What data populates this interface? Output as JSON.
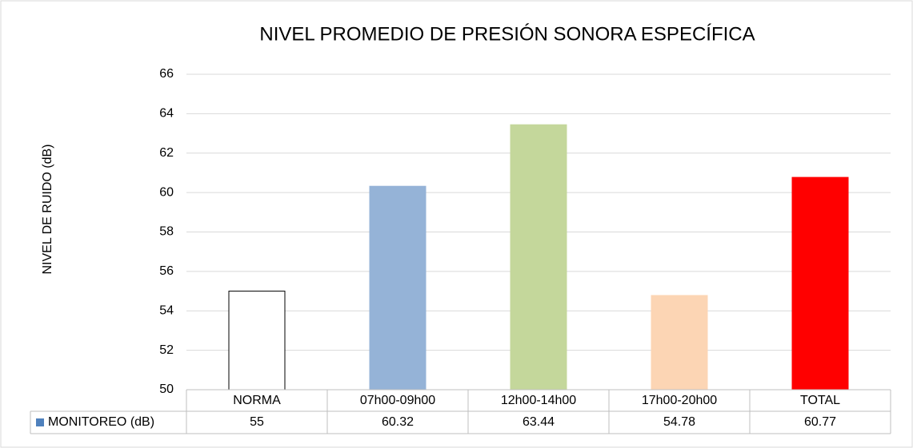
{
  "chart_data": {
    "type": "bar",
    "title": "NIVEL PROMEDIO DE PRESIÓN SONORA ESPECÍFICA",
    "ylabel": "NIVEL DE RUIDO (dB)",
    "categories": [
      "NORMA",
      "07h00-09h00",
      "12h00-14h00",
      "17h00-20h00",
      "TOTAL"
    ],
    "series": [
      {
        "name": "MONITOREO (dB)",
        "color": "#4f81bd",
        "values": [
          55,
          60.32,
          63.44,
          54.78,
          60.77
        ],
        "bar_colors": [
          "#ffffff",
          "#95b3d7",
          "#c4d79b",
          "#fcd5b4",
          "#ff0000"
        ],
        "bar_edgecolors": [
          "#000000",
          "#95b3d7",
          "#c4d79b",
          "#fcd5b4",
          "#ff0000"
        ]
      }
    ],
    "ylim": [
      50,
      66
    ],
    "yticks": [
      50,
      52,
      54,
      56,
      58,
      60,
      62,
      64,
      66
    ],
    "grid": true,
    "data_table": true
  }
}
